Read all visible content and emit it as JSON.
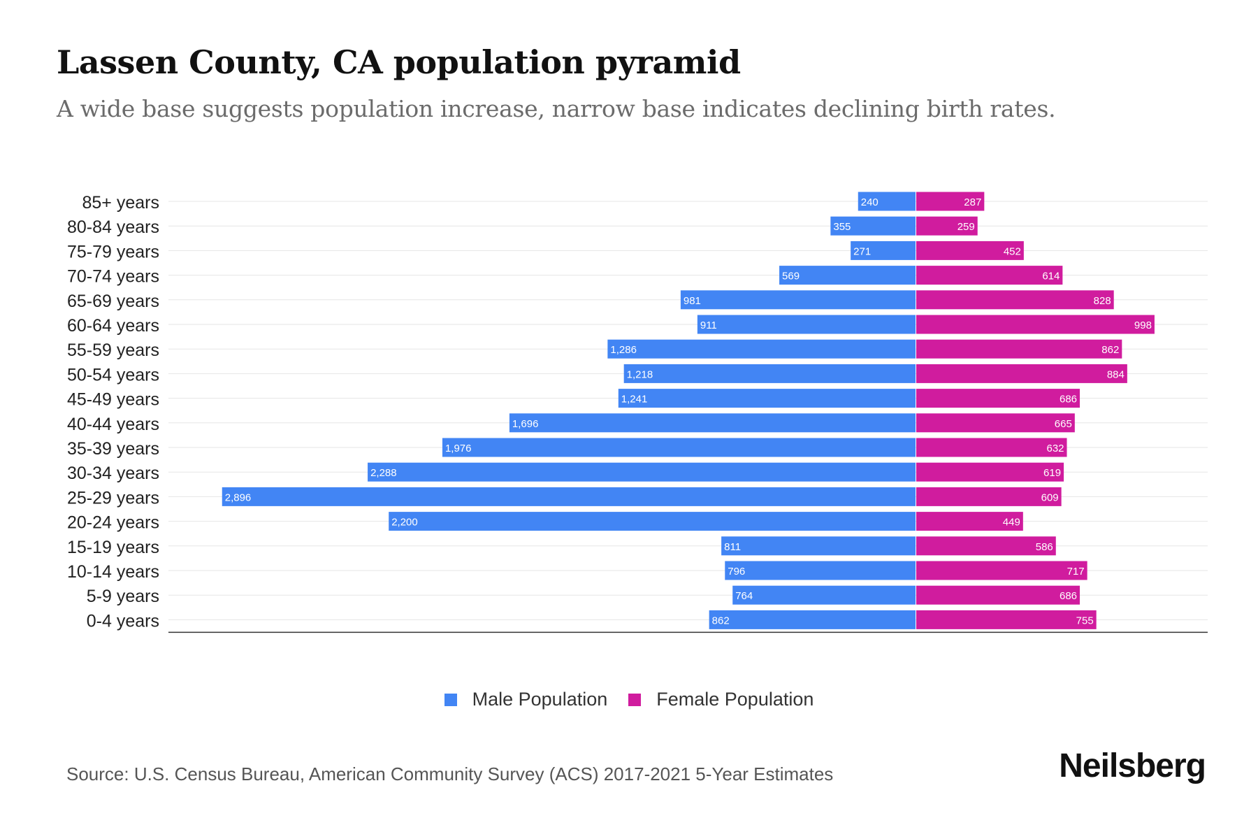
{
  "header": {
    "title": "Lassen County, CA population pyramid",
    "subtitle": "A wide base suggests population increase, narrow base indicates declining birth rates."
  },
  "legend": {
    "male_label": "Male Population",
    "female_label": "Female Population"
  },
  "footer": {
    "source": "Source: U.S. Census Bureau, American Community Survey (ACS) 2017-2021 5-Year Estimates",
    "brand": "Neilsberg"
  },
  "colors": {
    "male": "#4285f4",
    "female": "#d01c9e",
    "grid": "#e6e6e6",
    "axis": "#333333"
  },
  "chart_data": {
    "type": "bar",
    "orientation": "horizontal-pyramid",
    "title": "Lassen County, CA population pyramid",
    "categories": [
      "85+ years",
      "80-84 years",
      "75-79 years",
      "70-74 years",
      "65-69 years",
      "60-64 years",
      "55-59 years",
      "50-54 years",
      "45-49 years",
      "40-44 years",
      "35-39 years",
      "30-34 years",
      "25-29 years",
      "20-24 years",
      "15-19 years",
      "10-14 years",
      "5-9 years",
      "0-4 years"
    ],
    "series": [
      {
        "name": "Male Population",
        "side": "left",
        "values": [
          240,
          355,
          271,
          569,
          981,
          911,
          1286,
          1218,
          1241,
          1696,
          1976,
          2288,
          2896,
          2200,
          811,
          796,
          764,
          862
        ]
      },
      {
        "name": "Female Population",
        "side": "right",
        "values": [
          287,
          259,
          452,
          614,
          828,
          998,
          862,
          884,
          686,
          665,
          632,
          619,
          609,
          449,
          586,
          717,
          686,
          755
        ]
      }
    ],
    "xlim": [
      -3120,
      1220
    ],
    "legend_position": "bottom-center",
    "grid": true
  }
}
